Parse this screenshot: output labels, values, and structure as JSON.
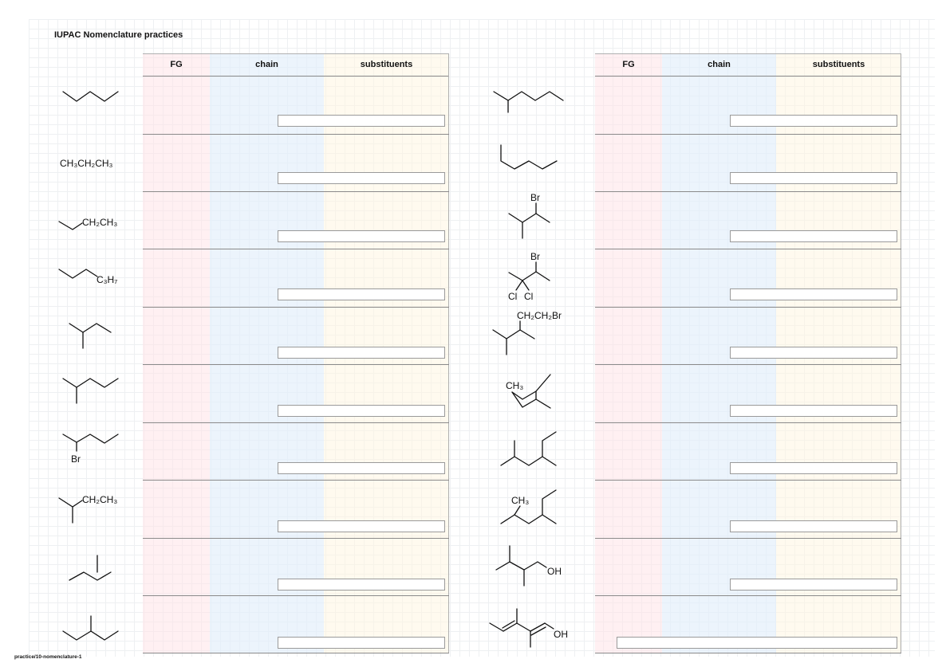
{
  "page": {
    "title": "IUPAC Nomenclature practices",
    "footer": "practice/10-nomenclature-1"
  },
  "table_headers": {
    "fg": "FG",
    "chain": "chain",
    "substituents": "substituents"
  },
  "labels": {
    "left_2": "CH₃CH₂CH₃",
    "left_3": "CH₂CH₃",
    "left_4": "C₃H₇",
    "left_7": "Br",
    "left_8": "CH₂CH₃",
    "right_3": "Br",
    "right_4_br": "Br",
    "right_4_cl1": "Cl",
    "right_4_cl2": "Cl",
    "right_5": "CH₂CH₂Br",
    "right_6": "CH₃",
    "right_8": "CH₃",
    "right_9": "OH",
    "right_10": "OH"
  }
}
